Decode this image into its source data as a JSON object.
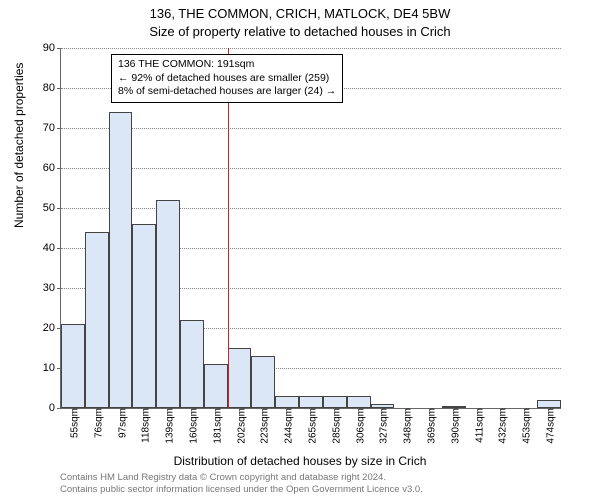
{
  "chart": {
    "type": "histogram",
    "title_main": "136, THE COMMON, CRICH, MATLOCK, DE4 5BW",
    "title_sub": "Size of property relative to detached houses in Crich",
    "ylabel": "Number of detached properties",
    "xlabel": "Distribution of detached houses by size in Crich",
    "ylim": [
      0,
      90
    ],
    "ytick_step": 10,
    "xtick_labels": [
      "55sqm",
      "76sqm",
      "97sqm",
      "118sqm",
      "139sqm",
      "160sqm",
      "181sqm",
      "202sqm",
      "223sqm",
      "244sqm",
      "265sqm",
      "285sqm",
      "306sqm",
      "327sqm",
      "348sqm",
      "369sqm",
      "390sqm",
      "411sqm",
      "432sqm",
      "453sqm",
      "474sqm"
    ],
    "bar_values": [
      21,
      44,
      74,
      46,
      52,
      22,
      11,
      15,
      13,
      3,
      3,
      3,
      3,
      1,
      0,
      0,
      0.5,
      0,
      0,
      0,
      2
    ],
    "bar_fill": "#dbe6f6",
    "bar_border": "#444444",
    "grid_color": "#888888",
    "ref_line_color": "#d91c1c",
    "ref_line_bin_index": 7,
    "annotation": {
      "line1": "136 THE COMMON: 191sqm",
      "line2": "← 92% of detached houses are smaller (259)",
      "line3": "8% of semi-detached houses are larger (24) →"
    },
    "background_color": "#ffffff",
    "title_fontsize": 13,
    "label_fontsize": 12,
    "tick_fontsize": 11,
    "annotation_fontsize": 10.5
  },
  "footer": {
    "line1": "Contains HM Land Registry data © Crown copyright and database right 2024.",
    "line2": "Contains public sector information licensed under the Open Government Licence v3.0."
  }
}
